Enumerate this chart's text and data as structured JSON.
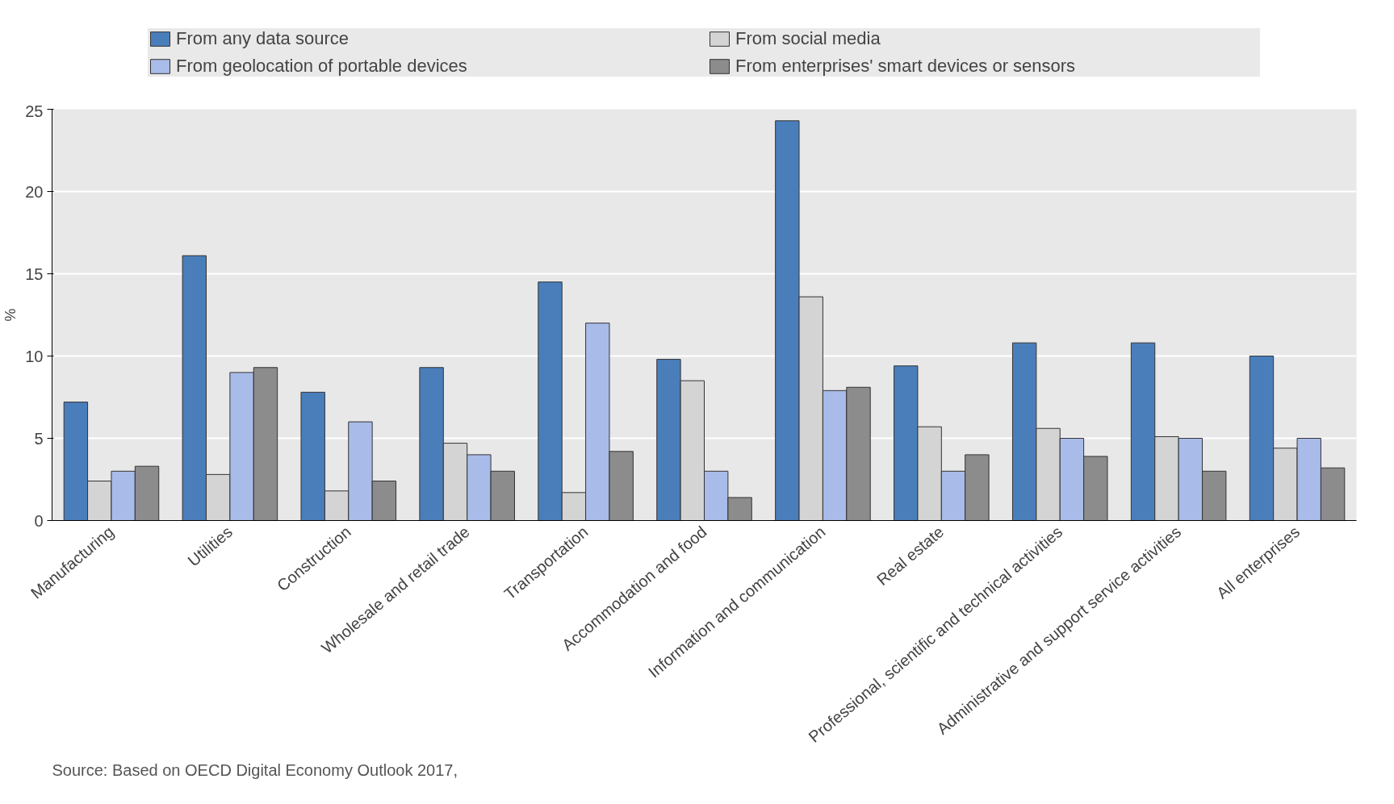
{
  "chart_data": {
    "type": "bar",
    "ylabel": "%",
    "categories": [
      "Manufacturing",
      "Utilities",
      "Construction",
      "Wholesale and retail trade",
      "Transportation",
      "Accommodation and food",
      "Information and communication",
      "Real estate",
      "Professional, scientific and technical activities",
      "Administrative and support service activities",
      "All enterprises"
    ],
    "series": [
      {
        "name": "From any data source",
        "color": "#4a7ebb",
        "values": [
          7.2,
          16.1,
          7.8,
          9.3,
          14.5,
          9.8,
          24.3,
          9.4,
          10.8,
          10.8,
          10.0
        ]
      },
      {
        "name": "From social media",
        "color": "#d4d4d4",
        "values": [
          2.4,
          2.8,
          1.8,
          4.7,
          1.7,
          8.5,
          13.6,
          5.7,
          5.6,
          5.1,
          4.4
        ]
      },
      {
        "name": "From geolocation of portable devices",
        "color": "#a9bbe8",
        "values": [
          3.0,
          9.0,
          6.0,
          4.0,
          12.0,
          3.0,
          7.9,
          3.0,
          5.0,
          5.0,
          5.0
        ]
      },
      {
        "name": "From enterprises' smart devices or sensors",
        "color": "#8c8c8c",
        "values": [
          3.3,
          9.3,
          2.4,
          3.0,
          4.2,
          1.4,
          8.1,
          4.0,
          3.9,
          3.0,
          3.2
        ]
      }
    ],
    "ylim": [
      0,
      25
    ],
    "yticks": [
      0,
      5,
      10,
      15,
      20,
      25
    ],
    "grid": "y",
    "legend": "top",
    "annotations": [
      "Source: Based on OECD Digital Economy Outlook 2017,"
    ]
  }
}
